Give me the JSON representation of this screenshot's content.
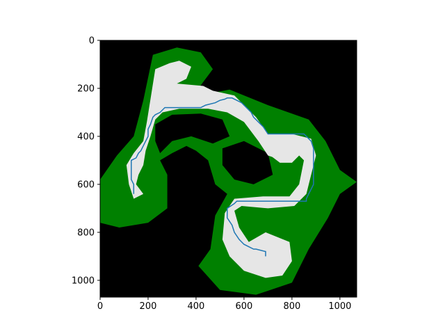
{
  "chart_data": {
    "type": "heatmap",
    "title": "",
    "xlabel": "",
    "ylabel": "",
    "xlim": [
      0,
      1070
    ],
    "ylim": [
      1070,
      0
    ],
    "x_ticks": [
      0,
      200,
      400,
      600,
      800,
      1000
    ],
    "y_ticks": [
      0,
      200,
      400,
      600,
      800,
      1000
    ],
    "grid": false,
    "legend": "none",
    "colors": {
      "background": "#000000",
      "vegetation": "#008000",
      "open_space": "#e6e6e6",
      "path": "#1f77b4"
    },
    "regions": [
      {
        "name": "vegetation-band",
        "polygon": [
          [
            220,
            60
          ],
          [
            320,
            30
          ],
          [
            420,
            50
          ],
          [
            470,
            120
          ],
          [
            410,
            200
          ],
          [
            355,
            240
          ],
          [
            540,
            205
          ],
          [
            700,
            270
          ],
          [
            870,
            330
          ],
          [
            940,
            420
          ],
          [
            1000,
            540
          ],
          [
            1070,
            590
          ],
          [
            1000,
            640
          ],
          [
            950,
            740
          ],
          [
            870,
            870
          ],
          [
            800,
            1010
          ],
          [
            650,
            1060
          ],
          [
            500,
            1040
          ],
          [
            410,
            940
          ],
          [
            460,
            870
          ],
          [
            480,
            730
          ],
          [
            530,
            640
          ],
          [
            480,
            600
          ],
          [
            450,
            500
          ],
          [
            400,
            460
          ],
          [
            360,
            440
          ],
          [
            300,
            470
          ],
          [
            250,
            500
          ],
          [
            280,
            560
          ],
          [
            280,
            700
          ],
          [
            200,
            760
          ],
          [
            80,
            780
          ],
          [
            0,
            760
          ],
          [
            0,
            580
          ],
          [
            70,
            480
          ],
          [
            140,
            400
          ],
          [
            180,
            250
          ]
        ]
      },
      {
        "name": "inner-hole-left",
        "polygon": [
          [
            230,
            350
          ],
          [
            300,
            310
          ],
          [
            420,
            305
          ],
          [
            510,
            330
          ],
          [
            540,
            400
          ],
          [
            470,
            430
          ],
          [
            380,
            400
          ],
          [
            300,
            420
          ],
          [
            250,
            470
          ],
          [
            230,
            420
          ]
        ]
      },
      {
        "name": "inner-hole-center",
        "polygon": [
          [
            510,
            450
          ],
          [
            600,
            420
          ],
          [
            700,
            470
          ],
          [
            720,
            560
          ],
          [
            640,
            600
          ],
          [
            560,
            580
          ],
          [
            510,
            520
          ]
        ]
      },
      {
        "name": "open-corridor",
        "polygon": [
          [
            230,
            120
          ],
          [
            290,
            95
          ],
          [
            330,
            85
          ],
          [
            380,
            110
          ],
          [
            360,
            160
          ],
          [
            320,
            180
          ],
          [
            430,
            190
          ],
          [
            470,
            210
          ],
          [
            560,
            230
          ],
          [
            650,
            320
          ],
          [
            700,
            390
          ],
          [
            800,
            390
          ],
          [
            880,
            410
          ],
          [
            900,
            480
          ],
          [
            880,
            560
          ],
          [
            860,
            640
          ],
          [
            810,
            690
          ],
          [
            700,
            700
          ],
          [
            590,
            690
          ],
          [
            560,
            710
          ],
          [
            580,
            780
          ],
          [
            620,
            840
          ],
          [
            690,
            800
          ],
          [
            790,
            840
          ],
          [
            800,
            920
          ],
          [
            760,
            980
          ],
          [
            690,
            990
          ],
          [
            600,
            960
          ],
          [
            540,
            900
          ],
          [
            510,
            830
          ],
          [
            520,
            720
          ],
          [
            560,
            660
          ],
          [
            680,
            650
          ],
          [
            790,
            650
          ],
          [
            830,
            600
          ],
          [
            850,
            500
          ],
          [
            820,
            470
          ],
          [
            760,
            500
          ],
          [
            700,
            480
          ],
          [
            660,
            420
          ],
          [
            600,
            340
          ],
          [
            530,
            300
          ],
          [
            450,
            285
          ],
          [
            330,
            285
          ],
          [
            260,
            300
          ],
          [
            230,
            330
          ],
          [
            210,
            400
          ],
          [
            190,
            460
          ],
          [
            180,
            520
          ],
          [
            160,
            560
          ],
          [
            150,
            600
          ],
          [
            180,
            640
          ],
          [
            140,
            660
          ],
          [
            120,
            600
          ],
          [
            110,
            520
          ],
          [
            140,
            470
          ],
          [
            180,
            420
          ],
          [
            195,
            340
          ]
        ]
      },
      {
        "name": "open-pocket-right",
        "polygon": [
          [
            720,
            410
          ],
          [
            770,
            400
          ],
          [
            820,
            420
          ],
          [
            830,
            480
          ],
          [
            800,
            510
          ],
          [
            750,
            510
          ],
          [
            710,
            480
          ]
        ]
      }
    ],
    "series": [
      {
        "type": "line",
        "x": [
          140,
          140,
          130,
          130,
          150,
          160,
          170,
          190,
          200,
          200,
          210,
          220,
          230,
          250,
          260,
          270,
          290,
          420,
          440,
          480,
          500,
          520,
          530,
          550,
          570,
          590,
          610,
          630,
          640,
          660,
          680,
          700,
          850,
          860,
          870,
          880,
          890,
          890,
          880,
          870,
          860,
          860,
          610,
          570,
          560,
          530,
          530,
          550,
          560,
          580,
          600,
          620,
          640,
          650,
          690,
          690
        ],
        "y": [
          640,
          600,
          580,
          500,
          490,
          470,
          460,
          420,
          400,
          370,
          350,
          320,
          310,
          300,
          290,
          280,
          280,
          280,
          270,
          260,
          250,
          245,
          240,
          240,
          250,
          260,
          280,
          300,
          320,
          340,
          360,
          390,
          390,
          400,
          410,
          420,
          450,
          600,
          620,
          640,
          660,
          670,
          670,
          670,
          680,
          700,
          740,
          770,
          800,
          830,
          850,
          860,
          870,
          870,
          880,
          900
        ]
      }
    ]
  }
}
